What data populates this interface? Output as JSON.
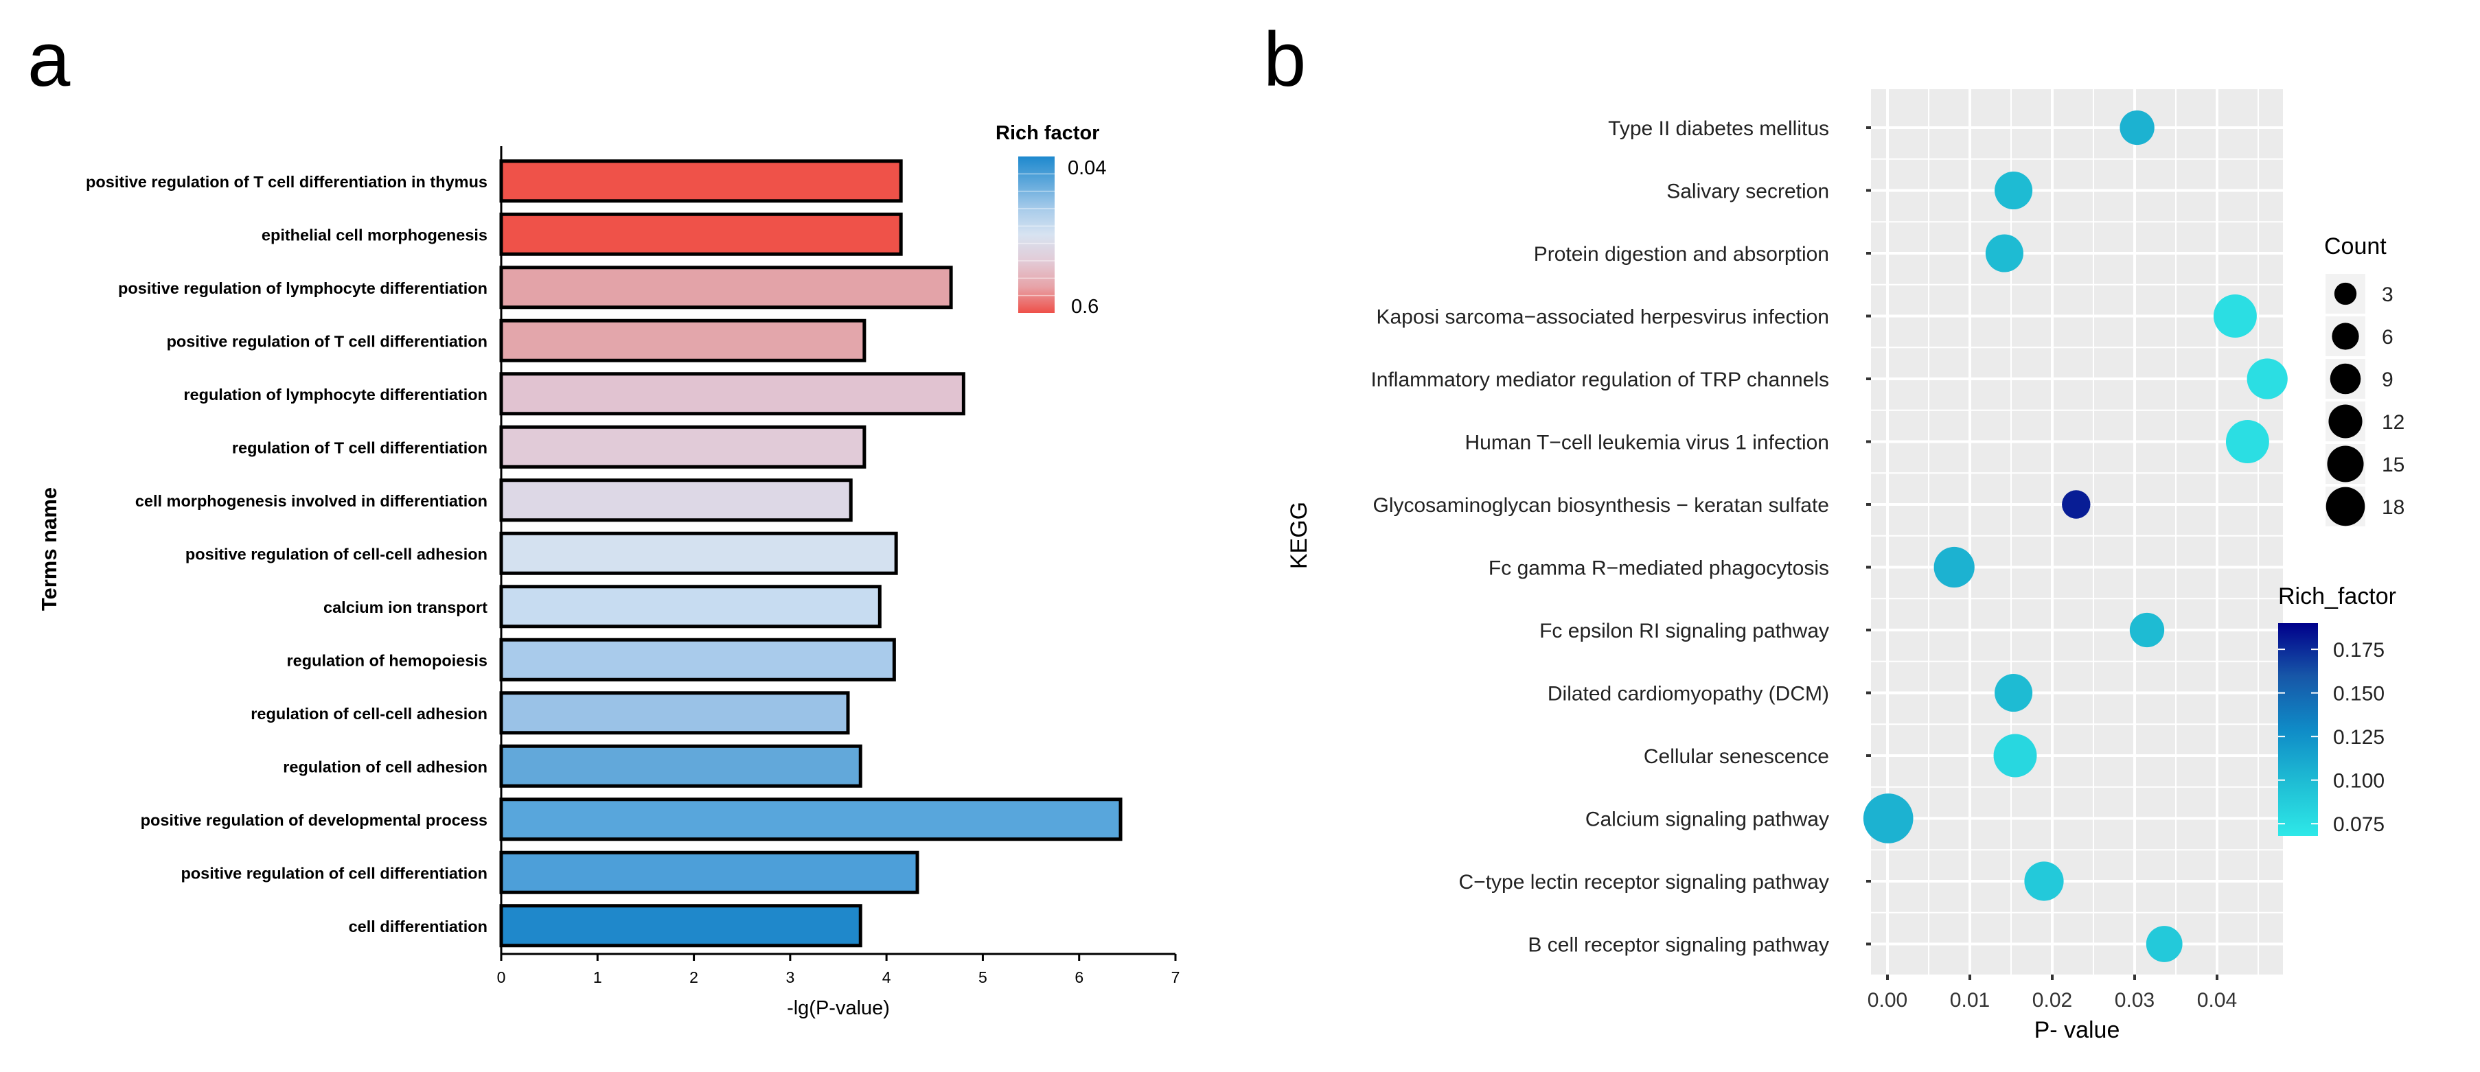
{
  "panels": {
    "a": "a",
    "b": "b"
  },
  "chart_data": [
    {
      "panel": "a",
      "type": "bar",
      "orientation": "horizontal",
      "title": "",
      "xlabel": "-lg(P-value)",
      "ylabel": "Terms name",
      "xlim": [
        0,
        7
      ],
      "xticks": [
        0,
        1,
        2,
        3,
        4,
        5,
        6,
        7
      ],
      "categories": [
        "positive regulation of T cell differentiation in thymus",
        "epithelial cell morphogenesis",
        "positive regulation of lymphocyte differentiation",
        "positive regulation of T cell differentiation",
        "regulation of lymphocyte differentiation",
        "regulation of T cell differentiation",
        "cell morphogenesis involved in differentiation",
        "positive regulation of cell-cell adhesion",
        "calcium ion transport",
        "regulation of hemopoiesis",
        "regulation of cell-cell adhesion",
        "regulation of cell adhesion",
        "positive regulation of developmental process",
        "positive regulation of cell differentiation",
        "cell differentiation"
      ],
      "values": [
        4.15,
        4.15,
        4.67,
        3.77,
        4.8,
        3.77,
        3.63,
        4.1,
        3.93,
        4.08,
        3.6,
        3.73,
        6.43,
        4.32,
        3.73
      ],
      "bar_colors": [
        "#ef5249",
        "#ef5249",
        "#e3a3a8",
        "#e3a6ab",
        "#e1c3d1",
        "#e1cbd8",
        "#ddd8e6",
        "#d4e1f0",
        "#c7dcf1",
        "#a9cbeb",
        "#9ac2e7",
        "#62a8da",
        "#58a6dc",
        "#4d9fd9",
        "#1f88cb"
      ],
      "legend": {
        "title": "Rich factor",
        "max_label": "0.04",
        "min_label": "0.6",
        "gradient": [
          "#1e89ce",
          "#5fa8db",
          "#a7cbea",
          "#d7e3f1",
          "#e2cbd7",
          "#e7a3a8",
          "#ee5049"
        ]
      }
    },
    {
      "panel": "b",
      "type": "scatter",
      "subtype": "bubble",
      "title": "",
      "xlabel": "P- value",
      "ylabel": "KEGG",
      "xlim": [
        -0.002,
        0.048
      ],
      "xticks": [
        0,
        0.01,
        0.02,
        0.03,
        0.04
      ],
      "xtick_labels": [
        "0.00",
        "0.01",
        "0.02",
        "0.03",
        "0.04"
      ],
      "categories": [
        "Type II diabetes mellitus",
        "Salivary secretion",
        "Protein digestion and absorption",
        "Kaposi sarcoma−associated herpesvirus infection",
        "Inflammatory mediator regulation of TRP channels",
        "Human T−cell leukemia virus 1 infection",
        "Glycosaminoglycan biosynthesis − keratan sulfate",
        "Fc gamma R−mediated phagocytosis",
        "Fc epsilon RI signaling pathway",
        "Dilated cardiomyopathy (DCM)",
        "Cellular senescence",
        "Calcium signaling pathway",
        "C−type lectin receptor signaling pathway",
        "B cell receptor signaling pathway"
      ],
      "x": [
        0.0303,
        0.0153,
        0.0142,
        0.0422,
        0.0461,
        0.0437,
        0.0229,
        0.0081,
        0.0315,
        0.0153,
        0.0155,
        0.0001,
        0.019,
        0.0336
      ],
      "count": [
        6,
        8,
        8,
        12,
        10,
        12,
        3,
        10,
        6,
        8,
        12,
        18,
        9,
        7
      ],
      "rich_factor": [
        0.105,
        0.1,
        0.1,
        0.075,
        0.075,
        0.075,
        0.18,
        0.105,
        0.1,
        0.1,
        0.08,
        0.105,
        0.09,
        0.09
      ],
      "size_legend": {
        "title": "Count",
        "values": [
          "3",
          "6",
          "9",
          "12",
          "15",
          "18"
        ]
      },
      "color_legend": {
        "title": "Rich_factor",
        "ticks": [
          "0.175",
          "0.150",
          "0.125",
          "0.100",
          "0.075"
        ],
        "tick_values": [
          0.175,
          0.15,
          0.125,
          0.1,
          0.075
        ],
        "min": 0.068,
        "max": 0.19,
        "gradient": [
          "#00008b",
          "#1757a8",
          "#0f8bc7",
          "#1fbdd4",
          "#2ee8e8"
        ]
      },
      "panel_background": "#ebebeb"
    }
  ]
}
